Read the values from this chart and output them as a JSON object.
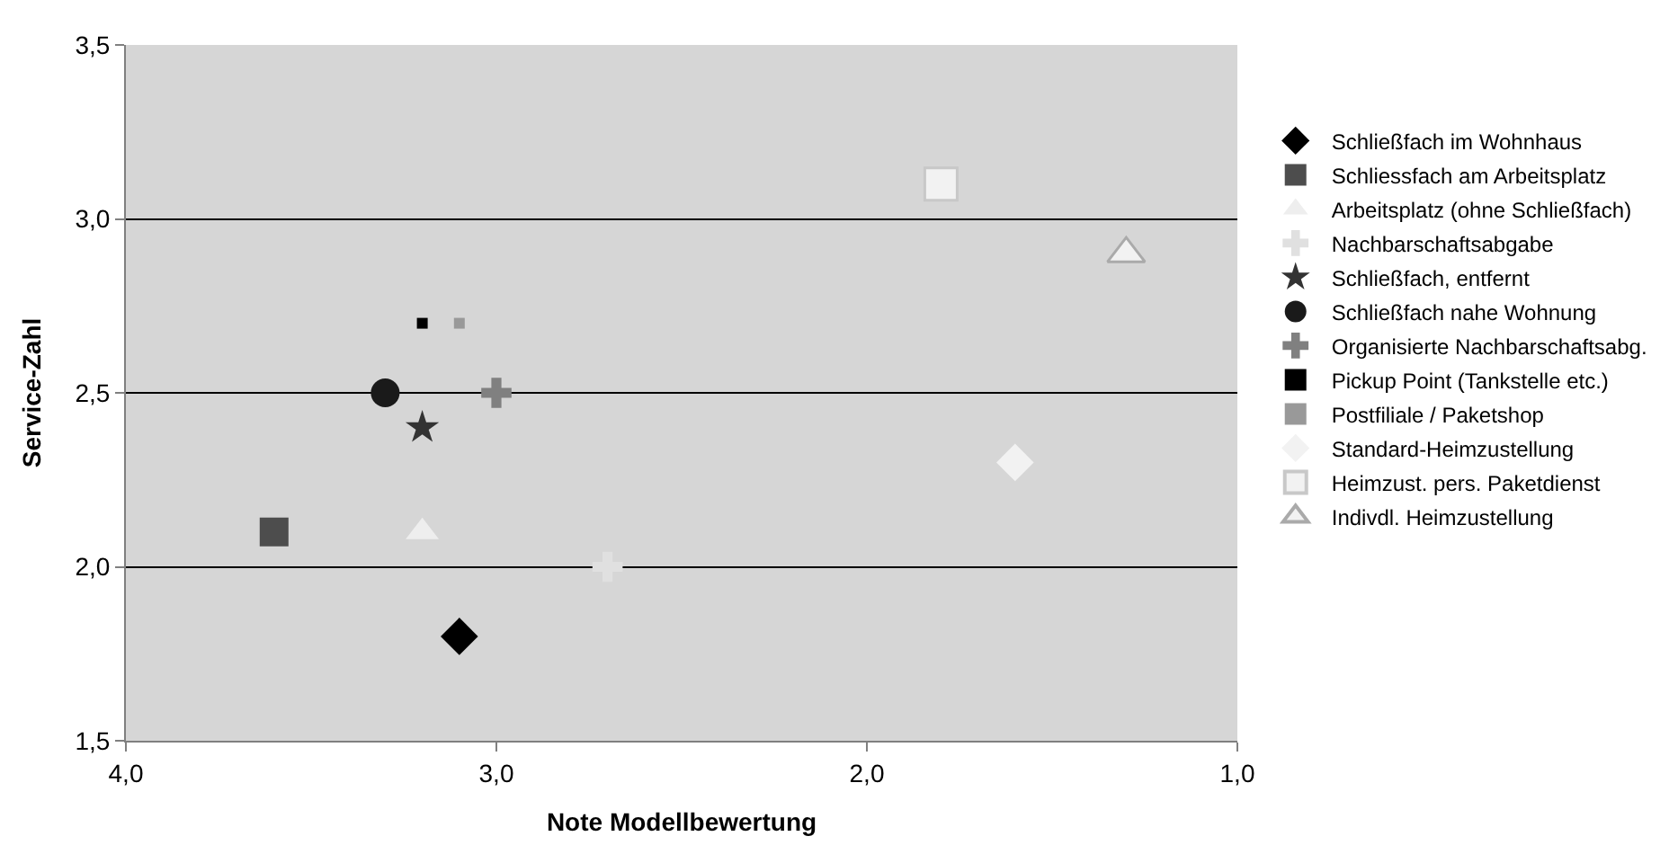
{
  "chart_data": {
    "type": "scatter",
    "xlabel": "Note Modellbewertung",
    "ylabel": "Service-Zahl",
    "xlim": [
      4.0,
      1.0
    ],
    "xticks": [
      {
        "value": 4.0,
        "label": "4,0"
      },
      {
        "value": 3.0,
        "label": "3,0"
      },
      {
        "value": 2.0,
        "label": "2,0"
      },
      {
        "value": 1.0,
        "label": "1,0"
      }
    ],
    "ylim": [
      1.5,
      3.5
    ],
    "yticks": [
      {
        "value": 1.5,
        "label": "1,5"
      },
      {
        "value": 2.0,
        "label": "2,0"
      },
      {
        "value": 2.5,
        "label": "2,5"
      },
      {
        "value": 3.0,
        "label": "3,0"
      },
      {
        "value": 3.5,
        "label": "3,5"
      }
    ],
    "grid": "y",
    "legend": "right",
    "series": [
      {
        "name": "Schließfach im Wohnhaus",
        "color": "#000000",
        "marker": "diamond",
        "x": [
          3.1
        ],
        "values": [
          1.8
        ]
      },
      {
        "name": "Schliessfach am Arbeitsplatz",
        "color": "#4d4d4d",
        "marker": "square",
        "x": [
          3.6
        ],
        "values": [
          2.1
        ]
      },
      {
        "name": "Arbeitsplatz (ohne Schließfach)",
        "color": "#eeeeee",
        "marker": "triangle",
        "x": [
          3.2
        ],
        "values": [
          2.1
        ]
      },
      {
        "name": "Nachbarschaftsabgabe",
        "color": "#e0e0e0",
        "marker": "cross",
        "x": [
          2.7
        ],
        "values": [
          2.0
        ]
      },
      {
        "name": "Schließfach, entfernt",
        "color": "#333333",
        "marker": "star",
        "x": [
          3.2
        ],
        "values": [
          2.4
        ]
      },
      {
        "name": "Schließfach nahe Wohnung",
        "color": "#1a1a1a",
        "marker": "circle",
        "x": [
          3.3
        ],
        "values": [
          2.5
        ]
      },
      {
        "name": "Organisierte Nachbarschaftsabg.",
        "color": "#808080",
        "marker": "cross",
        "x": [
          3.0
        ],
        "values": [
          2.5
        ]
      },
      {
        "name": "Pickup Point (Tankstelle etc.)",
        "color": "#000000",
        "x": [
          3.2
        ],
        "values": [
          2.7
        ]
      },
      {
        "name": "Postfiliale / Paketshop",
        "color": "#999999",
        "x": [
          3.1
        ],
        "values": [
          2.7
        ]
      },
      {
        "name": "Standard-Heimzustellung",
        "color": "#f2f2f2",
        "marker": "diamond",
        "x": [
          1.6
        ],
        "values": [
          2.3
        ]
      },
      {
        "name": "Heimzust. pers. Paketdienst",
        "color": "#c8c8c8",
        "marker": "square",
        "x": [
          1.8
        ],
        "values": [
          3.1
        ]
      },
      {
        "name": "Indivdl. Heimzustellung",
        "color": "#aaaaaa",
        "marker": "triangle",
        "x": [
          1.3
        ],
        "values": [
          2.9
        ]
      }
    ]
  }
}
